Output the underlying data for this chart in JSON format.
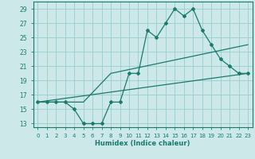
{
  "title": "",
  "xlabel": "Humidex (Indice chaleur)",
  "bg_color": "#cce8e8",
  "grid_color": "#99cccc",
  "line_color": "#1a7a6e",
  "xlim": [
    -0.5,
    23.5
  ],
  "ylim": [
    12.5,
    30.0
  ],
  "xticks": [
    0,
    1,
    2,
    3,
    4,
    5,
    6,
    7,
    8,
    9,
    10,
    11,
    12,
    13,
    14,
    15,
    16,
    17,
    18,
    19,
    20,
    21,
    22,
    23
  ],
  "yticks": [
    13,
    15,
    17,
    19,
    21,
    23,
    25,
    27,
    29
  ],
  "line1_x": [
    0,
    1,
    2,
    3,
    4,
    5,
    6,
    7,
    8,
    9,
    10,
    11,
    12,
    13,
    14,
    15,
    16,
    17,
    18,
    19,
    20,
    21,
    22,
    23
  ],
  "line1_y": [
    16,
    16,
    16,
    16,
    15,
    13,
    13,
    13,
    16,
    16,
    20,
    20,
    26,
    25,
    27,
    29,
    28,
    29,
    26,
    24,
    22,
    21,
    20,
    20
  ],
  "line2_x": [
    0,
    5,
    8,
    23
  ],
  "line2_y": [
    16,
    16,
    20,
    24
  ],
  "line3_x": [
    0,
    23
  ],
  "line3_y": [
    16,
    20
  ]
}
